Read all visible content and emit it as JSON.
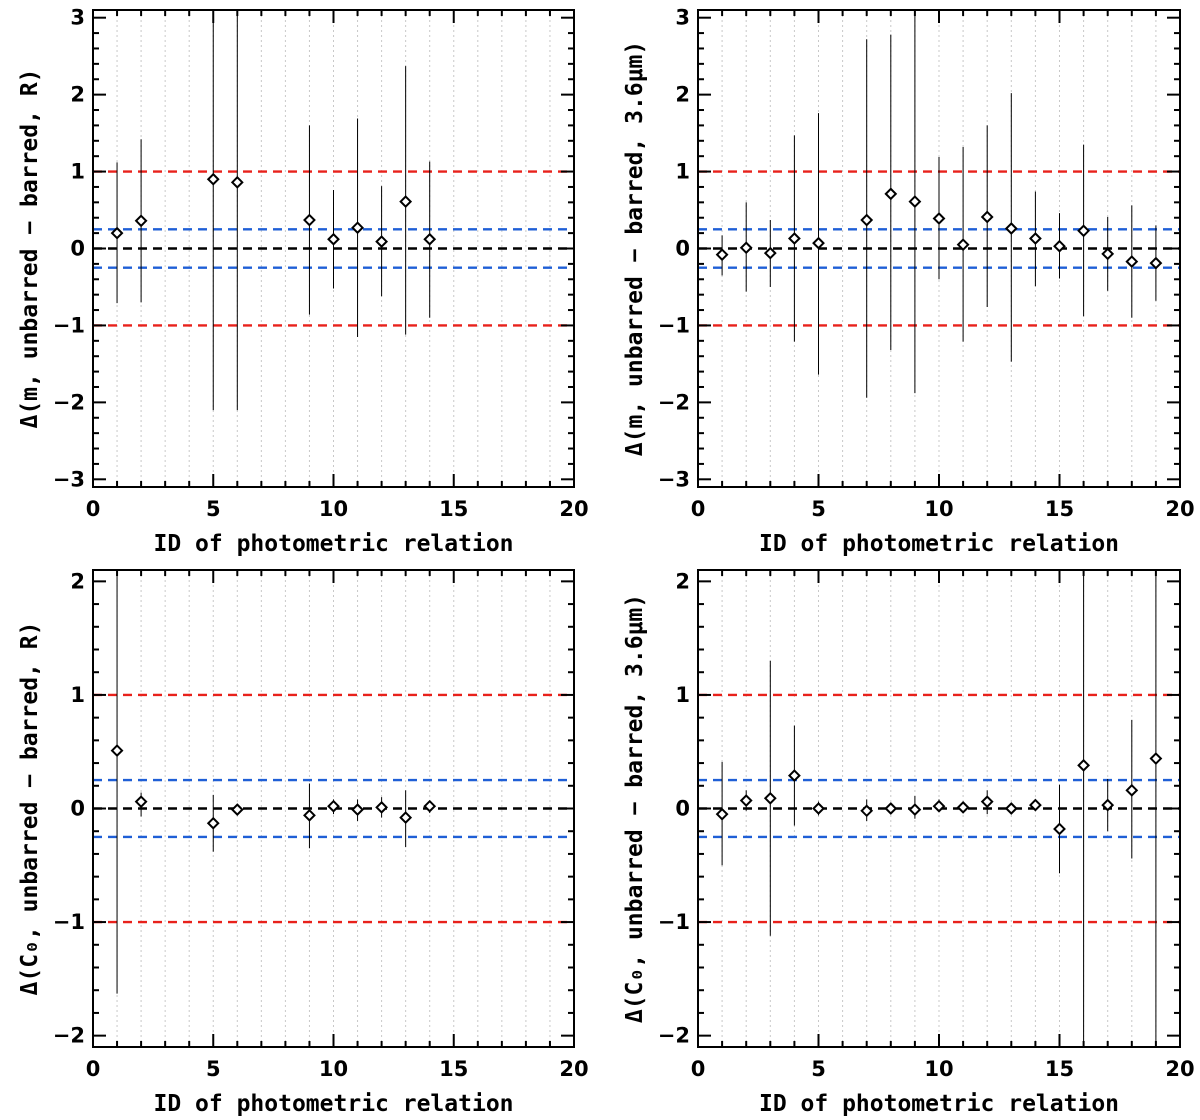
{
  "figure": {
    "colors": {
      "red_line": "#e8211b",
      "blue_line": "#1f5fd6",
      "black_line": "#000000",
      "grid": "#c8c8c8"
    }
  },
  "chart_data": [
    {
      "type": "scatter",
      "title": "",
      "xlabel": "ID of photometric relation",
      "ylabel": "Δ(m, unbarred − barred, R)",
      "xlim": [
        0,
        20
      ],
      "ylim": [
        -3.1,
        3.1
      ],
      "x_ticks": [
        0,
        5,
        10,
        15,
        20
      ],
      "x_tick_labels": [
        "0",
        "5",
        "10",
        "15",
        "20"
      ],
      "y_ticks": [
        -3,
        -2,
        -1,
        0,
        1,
        2,
        3
      ],
      "y_tick_labels": [
        "−3",
        "−2",
        "−1",
        "0",
        "1",
        "2",
        "3"
      ],
      "reference_lines": [
        {
          "y": 1,
          "color": "red"
        },
        {
          "y": -1,
          "color": "red"
        },
        {
          "y": 0.25,
          "color": "blue"
        },
        {
          "y": -0.25,
          "color": "blue"
        },
        {
          "y": 0,
          "color": "black"
        }
      ],
      "series": [
        {
          "name": "points",
          "x": [
            1,
            2,
            5,
            6,
            9,
            10,
            11,
            12,
            13,
            14
          ],
          "y": [
            0.2,
            0.36,
            0.9,
            0.86,
            0.37,
            0.12,
            0.27,
            0.09,
            0.61,
            0.12
          ],
          "yerr_low": [
            -0.71,
            -0.7,
            -2.1,
            -2.1,
            -0.86,
            -0.52,
            -1.15,
            -0.62,
            -1.12,
            -0.9
          ],
          "yerr_high": [
            1.12,
            1.42,
            3.1,
            3.1,
            1.6,
            0.76,
            1.69,
            0.81,
            2.37,
            1.13
          ]
        }
      ]
    },
    {
      "type": "scatter",
      "title": "",
      "xlabel": "ID of photometric relation",
      "ylabel": "Δ(m, unbarred − barred, 3.6μm)",
      "xlim": [
        0,
        20
      ],
      "ylim": [
        -3.1,
        3.1
      ],
      "x_ticks": [
        0,
        5,
        10,
        15,
        20
      ],
      "x_tick_labels": [
        "0",
        "5",
        "10",
        "15",
        "20"
      ],
      "y_ticks": [
        -3,
        -2,
        -1,
        0,
        1,
        2,
        3
      ],
      "y_tick_labels": [
        "−3",
        "−2",
        "−1",
        "0",
        "1",
        "2",
        "3"
      ],
      "reference_lines": [
        {
          "y": 1,
          "color": "red"
        },
        {
          "y": -1,
          "color": "red"
        },
        {
          "y": 0.25,
          "color": "blue"
        },
        {
          "y": -0.25,
          "color": "blue"
        },
        {
          "y": 0,
          "color": "black"
        }
      ],
      "series": [
        {
          "name": "points",
          "x": [
            1,
            2,
            3,
            4,
            5,
            7,
            8,
            9,
            10,
            11,
            12,
            13,
            14,
            15,
            16,
            17,
            18,
            19
          ],
          "y": [
            -0.08,
            0.01,
            -0.06,
            0.13,
            0.07,
            0.37,
            0.71,
            0.61,
            0.39,
            0.05,
            0.41,
            0.26,
            0.13,
            0.03,
            0.23,
            -0.07,
            -0.17,
            -0.19
          ],
          "yerr_low": [
            -0.35,
            -0.56,
            -0.5,
            -1.21,
            -1.64,
            -1.94,
            -1.32,
            -1.88,
            -0.4,
            -1.21,
            -0.76,
            -1.47,
            -0.49,
            -0.39,
            -0.88,
            -0.55,
            -0.9,
            -0.68
          ],
          "yerr_high": [
            0.17,
            0.6,
            0.37,
            1.47,
            1.76,
            2.72,
            2.78,
            3.1,
            1.19,
            1.32,
            1.6,
            2.02,
            0.74,
            0.46,
            1.35,
            0.41,
            0.56,
            0.3
          ]
        }
      ]
    },
    {
      "type": "scatter",
      "title": "",
      "xlabel": "ID of photometric relation",
      "ylabel": "Δ(C₀, unbarred − barred, R)",
      "xlim": [
        0,
        20
      ],
      "ylim": [
        -2.1,
        2.1
      ],
      "x_ticks": [
        0,
        5,
        10,
        15,
        20
      ],
      "x_tick_labels": [
        "0",
        "5",
        "10",
        "15",
        "20"
      ],
      "y_ticks": [
        -2,
        -1,
        0,
        1,
        2
      ],
      "y_tick_labels": [
        "−2",
        "−1",
        "0",
        "1",
        "2"
      ],
      "reference_lines": [
        {
          "y": 1,
          "color": "red"
        },
        {
          "y": -1,
          "color": "red"
        },
        {
          "y": 0.25,
          "color": "blue"
        },
        {
          "y": -0.25,
          "color": "blue"
        },
        {
          "y": 0,
          "color": "black"
        }
      ],
      "series": [
        {
          "name": "points",
          "x": [
            1,
            2,
            5,
            6,
            9,
            10,
            11,
            12,
            13,
            14
          ],
          "y": [
            0.51,
            0.06,
            -0.13,
            -0.01,
            -0.06,
            0.02,
            -0.01,
            0.01,
            -0.08,
            0.02
          ],
          "yerr_low": [
            -1.63,
            -0.07,
            -0.38,
            -0.05,
            -0.35,
            -0.05,
            -0.11,
            -0.08,
            -0.34,
            -0.04
          ],
          "yerr_high": [
            2.1,
            0.14,
            0.12,
            0.03,
            0.22,
            0.08,
            0.08,
            0.1,
            0.16,
            0.07
          ]
        }
      ]
    },
    {
      "type": "scatter",
      "title": "",
      "xlabel": "ID of photometric relation",
      "ylabel": "Δ(C₀, unbarred − barred, 3.6μm)",
      "xlim": [
        0,
        20
      ],
      "ylim": [
        -2.1,
        2.1
      ],
      "x_ticks": [
        0,
        5,
        10,
        15,
        20
      ],
      "x_tick_labels": [
        "0",
        "5",
        "10",
        "15",
        "20"
      ],
      "y_ticks": [
        -2,
        -1,
        0,
        1,
        2
      ],
      "y_tick_labels": [
        "−2",
        "−1",
        "0",
        "1",
        "2"
      ],
      "reference_lines": [
        {
          "y": 1,
          "color": "red"
        },
        {
          "y": -1,
          "color": "red"
        },
        {
          "y": 0.25,
          "color": "blue"
        },
        {
          "y": -0.25,
          "color": "blue"
        },
        {
          "y": 0,
          "color": "black"
        }
      ],
      "series": [
        {
          "name": "points",
          "x": [
            1,
            2,
            3,
            4,
            5,
            7,
            8,
            9,
            10,
            11,
            12,
            13,
            14,
            15,
            16,
            17,
            18,
            19
          ],
          "y": [
            -0.05,
            0.07,
            0.09,
            0.29,
            0.0,
            -0.02,
            0.0,
            -0.01,
            0.02,
            0.01,
            0.06,
            0.0,
            0.03,
            -0.18,
            0.38,
            0.03,
            0.16,
            0.44
          ],
          "yerr_low": [
            -0.5,
            -0.02,
            -1.12,
            -0.15,
            -0.06,
            -0.11,
            -0.03,
            -0.09,
            -0.03,
            -0.04,
            -0.05,
            -0.05,
            -0.01,
            -0.57,
            -2.1,
            -0.2,
            -0.44,
            -2.1
          ],
          "yerr_high": [
            0.41,
            0.16,
            1.3,
            0.73,
            0.06,
            0.08,
            0.03,
            0.11,
            0.08,
            0.06,
            0.16,
            0.05,
            0.06,
            0.21,
            2.1,
            0.26,
            0.78,
            2.1
          ]
        }
      ]
    }
  ]
}
